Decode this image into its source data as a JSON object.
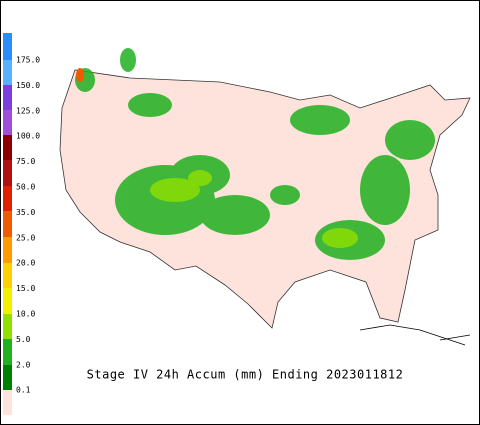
{
  "legend": {
    "labels": [
      "175.0",
      "150.0",
      "125.0",
      "100.0",
      "75.0",
      "50.0",
      "35.0",
      "25.0",
      "20.0",
      "15.0",
      "10.0",
      "5.0",
      "2.0",
      "0.1"
    ]
  },
  "caption": "Stage IV 24h Accum (mm) Ending 2023011812"
}
